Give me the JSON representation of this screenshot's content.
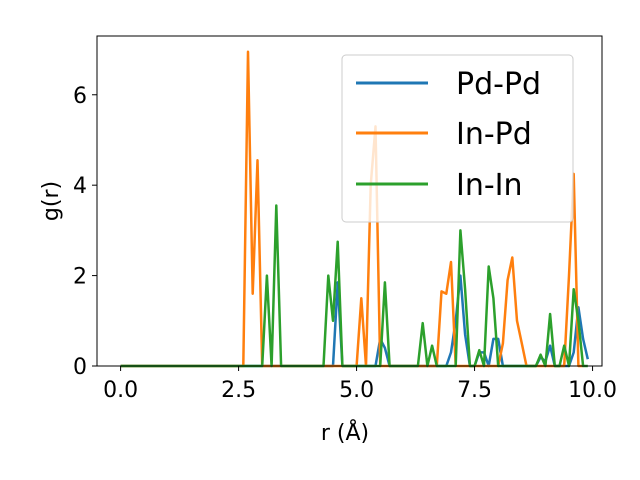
{
  "chart_data": {
    "type": "line",
    "xlabel": "r (Å)",
    "ylabel": "g(r)",
    "xlim": [
      -0.5,
      10.2
    ],
    "ylim": [
      0,
      7.3
    ],
    "xticks": [
      0.0,
      2.5,
      5.0,
      7.5,
      10.0
    ],
    "xtick_labels": [
      "0.0",
      "2.5",
      "5.0",
      "7.5",
      "10.0"
    ],
    "yticks": [
      0,
      2,
      4,
      6
    ],
    "ytick_labels": [
      "0",
      "2",
      "4",
      "6"
    ],
    "legend_position": "top-right",
    "grid": false,
    "series": [
      {
        "name": "Pd-Pd",
        "color": "#1f77b4",
        "x": [
          0.0,
          2.6,
          2.7,
          2.8,
          2.9,
          3.0,
          3.1,
          3.2,
          3.3,
          4.3,
          4.4,
          4.5,
          4.6,
          4.7,
          5.4,
          5.5,
          5.6,
          5.7,
          6.9,
          7.0,
          7.1,
          7.2,
          7.3,
          7.4,
          7.5,
          7.6,
          7.7,
          7.8,
          7.9,
          8.0,
          8.1,
          8.8,
          8.9,
          9.0,
          9.1,
          9.2,
          9.3,
          9.5,
          9.6,
          9.7,
          9.8,
          9.9
        ],
        "y": [
          0,
          0,
          0,
          0,
          0,
          0,
          0,
          0,
          0,
          0,
          0,
          0,
          1.85,
          0,
          0,
          0.6,
          0.4,
          0,
          0,
          0.3,
          1.0,
          2.0,
          0.7,
          0,
          0,
          0.3,
          0.3,
          0,
          0.6,
          0.6,
          0,
          0,
          0.2,
          0.1,
          0.45,
          0,
          0,
          0,
          0.3,
          1.3,
          0.6,
          0.15
        ]
      },
      {
        "name": "In-Pd",
        "color": "#ff7f0e",
        "x": [
          0.0,
          2.6,
          2.7,
          2.8,
          2.9,
          3.0,
          5.0,
          5.1,
          5.2,
          5.3,
          5.4,
          5.5,
          6.7,
          6.8,
          6.9,
          7.0,
          7.1,
          7.2,
          8.0,
          8.1,
          8.2,
          8.3,
          8.4,
          8.5,
          8.6,
          8.7,
          8.8,
          9.4,
          9.5,
          9.6,
          9.7,
          9.8
        ],
        "y": [
          0,
          0,
          6.95,
          1.6,
          4.55,
          0,
          0,
          1.5,
          0,
          4.0,
          5.3,
          0,
          0,
          1.65,
          1.6,
          2.3,
          0,
          0,
          0,
          0.5,
          1.9,
          2.4,
          1.0,
          0.5,
          0,
          0,
          0,
          0,
          2.0,
          4.25,
          0,
          0
        ],
        "points_note": ""
      },
      {
        "name": "In-In",
        "color": "#2ca02c",
        "x": [
          0.0,
          3.0,
          3.1,
          3.2,
          3.3,
          3.4,
          4.3,
          4.4,
          4.5,
          4.6,
          4.7,
          5.5,
          5.6,
          5.7,
          6.3,
          6.4,
          6.5,
          6.6,
          6.7,
          7.1,
          7.2,
          7.3,
          7.4,
          7.5,
          7.6,
          7.7,
          7.8,
          7.9,
          8.0,
          8.1,
          8.8,
          8.9,
          9.0,
          9.1,
          9.2,
          9.3,
          9.4,
          9.5,
          9.6,
          9.7,
          9.8,
          9.9
        ],
        "y": [
          0,
          0,
          2.0,
          0,
          3.55,
          0,
          0,
          2.0,
          1.0,
          2.75,
          0,
          0,
          1.85,
          0,
          0,
          0.95,
          0,
          0.45,
          0,
          0,
          3.0,
          1.7,
          0,
          0,
          0.35,
          0,
          2.2,
          1.5,
          0,
          0,
          0,
          0.25,
          0,
          1.15,
          0,
          0,
          0.45,
          0,
          1.7,
          1.0,
          0,
          0
        ]
      }
    ]
  }
}
